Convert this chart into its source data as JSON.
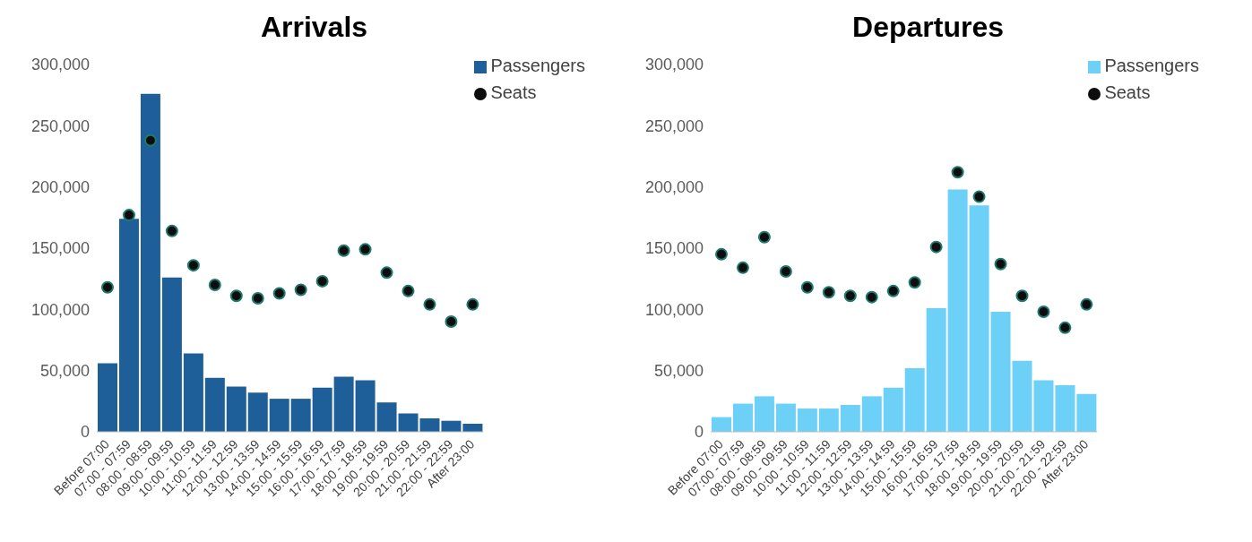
{
  "chart_data": [
    {
      "type": "bar",
      "title": "Arrivals",
      "categories": [
        "Before 07:00",
        "07:00 - 07:59",
        "08:00 - 08:59",
        "09:00 - 09:59",
        "10:00 - 10:59",
        "11:00 - 11:59",
        "12:00 - 12:59",
        "13:00 - 13:59",
        "14:00 - 14:59",
        "15:00 - 15:59",
        "16:00 - 16:59",
        "17:00 - 17:59",
        "18:00 - 18:59",
        "19:00 - 19:59",
        "20:00 - 20:59",
        "21:00 - 21:59",
        "22:00 - 22:59",
        "After 23:00"
      ],
      "series": [
        {
          "name": "Passengers",
          "type": "bar",
          "color": "#1f5f99",
          "values": [
            56000,
            174000,
            276000,
            126000,
            64000,
            44000,
            37000,
            32000,
            27000,
            27000,
            36000,
            45000,
            42000,
            24000,
            15000,
            11000,
            9000,
            6500
          ]
        },
        {
          "name": "Seats",
          "type": "scatter",
          "color": "#0d0d0d",
          "values": [
            118000,
            177000,
            238000,
            164000,
            136000,
            120000,
            111000,
            109000,
            113000,
            116000,
            123000,
            148000,
            149000,
            130000,
            115000,
            104000,
            90000,
            104000
          ]
        }
      ],
      "ylim": [
        0,
        300000
      ],
      "yticks": [
        0,
        {
          "value": 50000,
          "label": "50,000"
        },
        {
          "value": 100000,
          "label": "100,000"
        },
        {
          "value": 150000,
          "label": "150,000"
        },
        {
          "value": 200000,
          "label": "200,000"
        },
        {
          "value": 250000,
          "label": "250,000"
        },
        {
          "value": 300000,
          "label": "300,000"
        }
      ],
      "grid": false,
      "legend": "top right",
      "marker": "circle"
    },
    {
      "type": "bar",
      "title": "Departures",
      "categories": [
        "Before 07:00",
        "07:00 - 07:59",
        "08:00 - 08:59",
        "09:00 - 09:59",
        "10:00 - 10:59",
        "11:00 - 11:59",
        "12:00 - 12:59",
        "13:00 - 13:59",
        "14:00 - 14:59",
        "15:00 - 15:59",
        "16:00 - 16:59",
        "17:00 - 17:59",
        "18:00 - 18:59",
        "19:00 - 19:59",
        "20:00 - 20:59",
        "21:00 - 21:59",
        "22:00 - 22:59",
        "After 23:00"
      ],
      "series": [
        {
          "name": "Passengers",
          "type": "bar",
          "color": "#6dd0f7",
          "values": [
            12000,
            23000,
            29000,
            23000,
            19000,
            19000,
            22000,
            29000,
            36000,
            52000,
            101000,
            198000,
            185000,
            98000,
            58000,
            42000,
            38000,
            31000
          ]
        },
        {
          "name": "Seats",
          "type": "scatter",
          "color": "#0d0d0d",
          "values": [
            145000,
            134000,
            159000,
            131000,
            118000,
            114000,
            111000,
            110000,
            115000,
            122000,
            151000,
            212000,
            192000,
            137000,
            111000,
            98000,
            85000,
            104000
          ]
        }
      ],
      "ylim": [
        0,
        300000
      ],
      "yticks": [
        0,
        {
          "value": 50000,
          "label": "50,000"
        },
        {
          "value": 100000,
          "label": "100,000"
        },
        {
          "value": 150000,
          "label": "150,000"
        },
        {
          "value": 200000,
          "label": "200,000"
        },
        {
          "value": 250000,
          "label": "250,000"
        },
        {
          "value": 300000,
          "label": "300,000"
        }
      ],
      "grid": false,
      "legend": "top right",
      "marker": "circle"
    }
  ]
}
